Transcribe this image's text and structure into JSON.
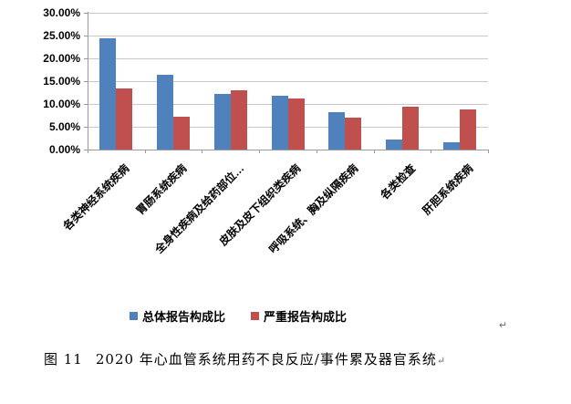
{
  "chart_data": {
    "type": "bar",
    "title": "",
    "categories": [
      "各类神经系统疾病",
      "胃肠系统疾病",
      "全身性疾病及给药部位…",
      "皮肤及皮下组织类疾病",
      "呼吸系统、胸及纵隔疾病",
      "各类检查",
      "肝胆系统疾病"
    ],
    "series": [
      {
        "name": "总体报告构成比",
        "color": "#4F81BD",
        "values": [
          24.4,
          16.4,
          12.2,
          11.9,
          8.3,
          2.3,
          1.7
        ]
      },
      {
        "name": "严重报告构成比",
        "color": "#C0504D",
        "values": [
          13.5,
          7.2,
          13.0,
          11.2,
          7.1,
          9.4,
          8.9
        ]
      }
    ],
    "xlabel": "",
    "ylabel": "",
    "ylim": [
      0,
      30
    ],
    "ytick_step": 5,
    "ytick_labels": [
      "0.00%",
      "5.00%",
      "10.00%",
      "15.00%",
      "20.00%",
      "25.00%",
      "30.00%"
    ],
    "grid": true,
    "legend_position": "bottom"
  },
  "colors": {
    "series1": "#4F81BD",
    "series2": "#C0504D",
    "gridline": "#C9C9C9",
    "axis": "#9A9A9A",
    "text": "#000000"
  },
  "caption": {
    "label": "图 11",
    "text": "2020 年心血管系统用药不良反应/事件累及器官系统"
  },
  "marks": {
    "after_chart": "↵",
    "after_caption": "↵"
  }
}
